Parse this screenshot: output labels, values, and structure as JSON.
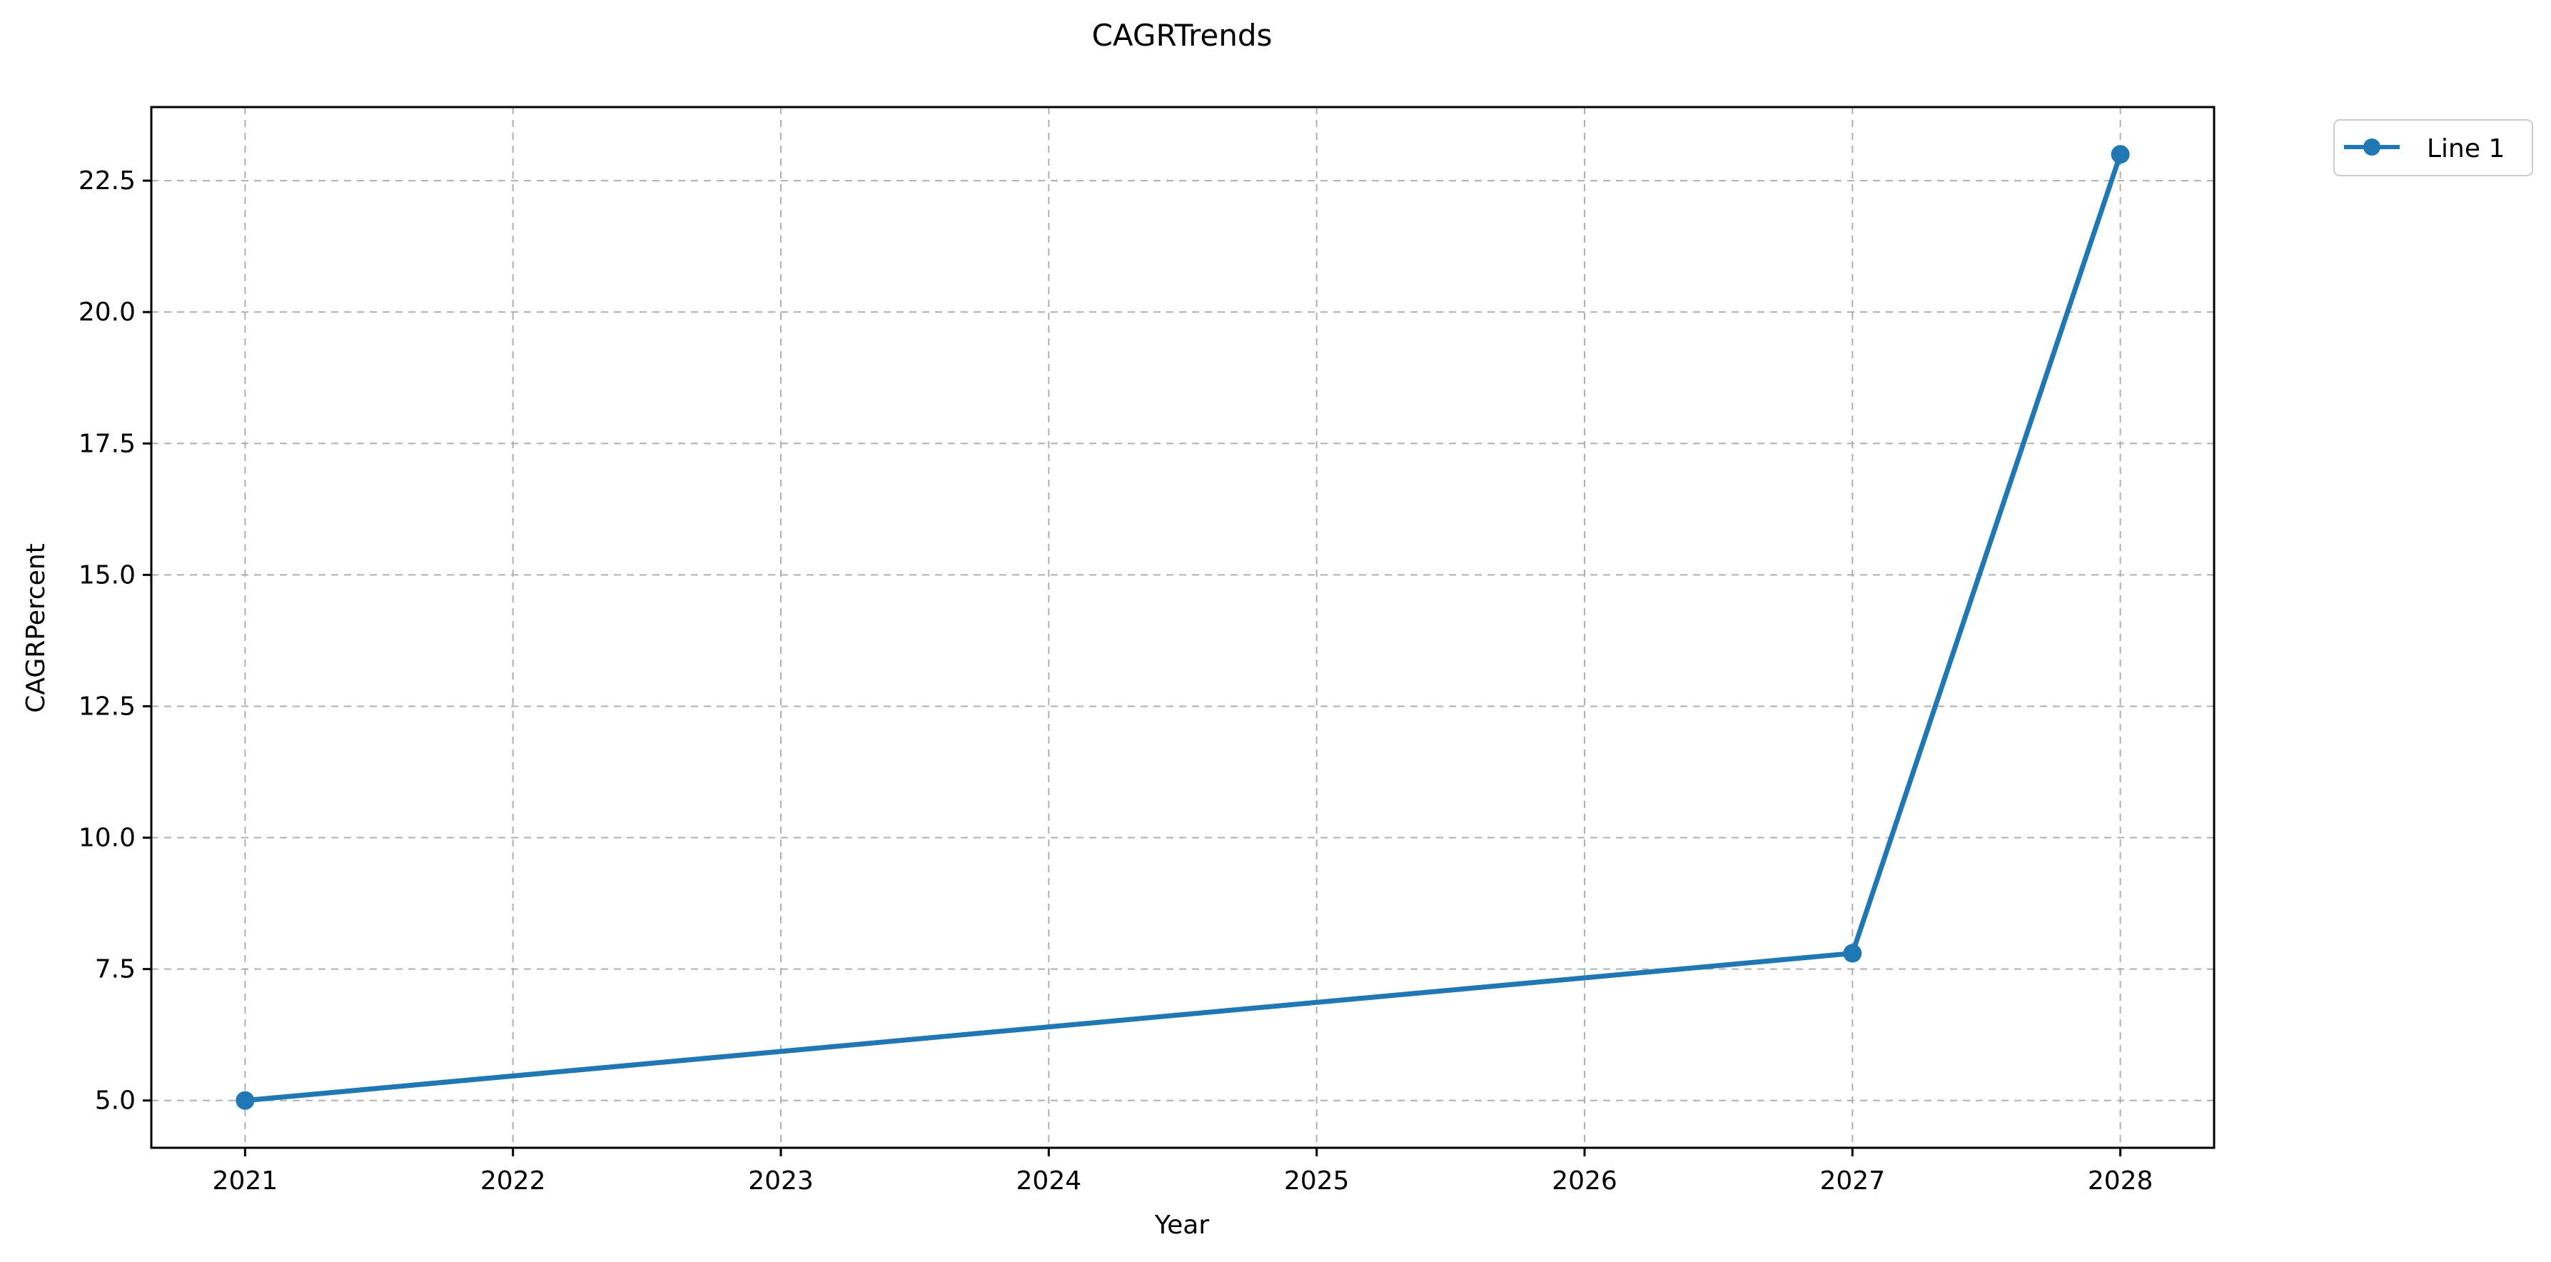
{
  "chart_data": {
    "type": "line",
    "title": "CAGRTrends",
    "xlabel": "Year",
    "ylabel": "CAGRPercent",
    "x": [
      2021,
      2027,
      2028
    ],
    "series": [
      {
        "name": "Line 1",
        "values": [
          5.0,
          7.8,
          23.0
        ],
        "color": "#1f77b4"
      }
    ],
    "x_ticks": [
      "2021",
      "2022",
      "2023",
      "2024",
      "2025",
      "2026",
      "2027",
      "2028"
    ],
    "y_ticks": [
      "5.0",
      "7.5",
      "10.0",
      "12.5",
      "15.0",
      "17.5",
      "20.0",
      "22.5"
    ],
    "xlim": [
      2020.65,
      2028.35
    ],
    "ylim": [
      4.1,
      23.9
    ],
    "grid": true,
    "grid_style": "dashed",
    "legend_position": "outside top-right",
    "colors": {
      "line": "#1f77b4",
      "grid": "#b0b0b0",
      "axes": "#000000"
    }
  }
}
